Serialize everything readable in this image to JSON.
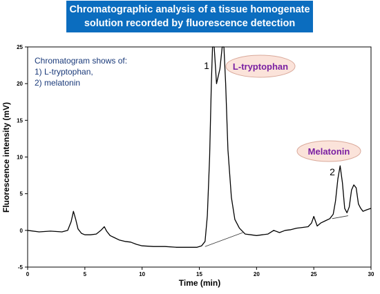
{
  "chart_data": {
    "type": "line",
    "title_lines": [
      "Chromatographic analysis of a tissue homogenate",
      "solution recorded by fluorescence detection"
    ],
    "xlabel": "Time (min)",
    "ylabel": "Fluorescence intensity (mV)",
    "xlim": [
      0,
      30
    ],
    "ylim": [
      -5,
      25
    ],
    "xticks": [
      0,
      5,
      10,
      15,
      20,
      25,
      30
    ],
    "yticks": [
      -5,
      0,
      5,
      10,
      15,
      20,
      25
    ],
    "grid": false,
    "legend": {
      "heading": "Chromatogram shows of:",
      "items": [
        "1) L-tryptophan,",
        "2) melatonin"
      ],
      "placement": "top-left"
    },
    "peak_labels": [
      {
        "number": "1",
        "name": "L-tryptophan",
        "x": 16.4,
        "y": 25
      },
      {
        "number": "2",
        "name": "Melatonin",
        "x": 27.3,
        "y": 8.8
      }
    ],
    "baselines": [
      [
        [
          15.5,
          -2.2
        ],
        [
          18.8,
          -0.3
        ]
      ],
      [
        [
          26.6,
          1.6
        ],
        [
          28.0,
          2.0
        ]
      ]
    ],
    "series": [
      {
        "color": "#000000",
        "x": [
          0,
          1,
          2,
          3,
          3.5,
          3.8,
          4.0,
          4.2,
          4.4,
          4.7,
          5,
          5.5,
          6,
          6.4,
          6.7,
          6.9,
          7.2,
          7.6,
          8,
          8.5,
          9,
          9.5,
          10,
          11,
          12,
          13,
          14,
          14.8,
          15.2,
          15.5,
          15.7,
          15.9,
          16.05,
          16.15,
          16.3,
          16.5,
          16.8,
          17.0,
          17.15,
          17.3,
          17.5,
          17.8,
          18.1,
          18.5,
          19,
          19.5,
          20,
          20.5,
          21,
          21.5,
          22,
          22.5,
          23,
          23.5,
          24,
          24.5,
          24.8,
          25.0,
          25.3,
          25.6,
          26,
          26.4,
          26.7,
          26.9,
          27.1,
          27.3,
          27.5,
          27.7,
          27.9,
          28.1,
          28.3,
          28.5,
          28.7,
          28.9,
          29.1,
          29.3,
          29.6,
          30
        ],
        "y": [
          0,
          -0.2,
          -0.1,
          -0.2,
          0,
          1.2,
          2.6,
          1.5,
          0.2,
          -0.4,
          -0.6,
          -0.6,
          -0.5,
          0,
          0.5,
          -0.1,
          -0.7,
          -1.0,
          -1.3,
          -1.5,
          -1.6,
          -1.9,
          -2.1,
          -2.2,
          -2.2,
          -2.3,
          -2.3,
          -2.3,
          -2.1,
          -1.5,
          2,
          10,
          20,
          25,
          25,
          20,
          22,
          25,
          25,
          20,
          11,
          4.5,
          1.5,
          0.3,
          -0.5,
          -0.6,
          -0.7,
          -0.6,
          -0.5,
          0,
          -0.3,
          0,
          0.1,
          0.3,
          0.4,
          0.5,
          1.0,
          1.9,
          0.6,
          1.0,
          1.3,
          1.6,
          2.2,
          4.0,
          7.0,
          8.8,
          6.5,
          3.0,
          2.4,
          3.2,
          5.5,
          6.2,
          5.8,
          3.6,
          3.0,
          2.6,
          2.8,
          3.0
        ]
      }
    ]
  }
}
